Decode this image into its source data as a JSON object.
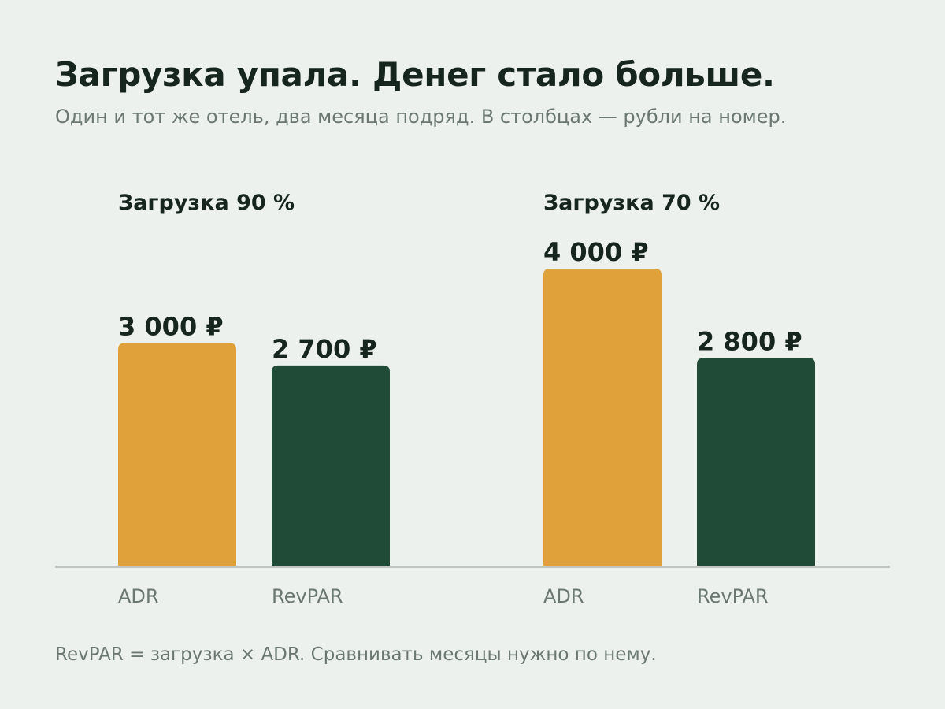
{
  "header": {
    "title": "Загрузка упала. Денег стало больше.",
    "subtitle": "Один и тот же отель, два месяца подряд. В столбцах — рубли на номер."
  },
  "footer": {
    "note": "RevPAR = загрузка × ADR. Сравнивать месяцы нужно по нему."
  },
  "colors": {
    "adr": "#E0A03A",
    "revpar": "#1F4B37",
    "baseline": "#BFC6C2",
    "background": "#EDF1EE"
  },
  "chart_data": {
    "type": "bar",
    "title": "Загрузка упала. Денег стало больше.",
    "subtitle": "Один и тот же отель, два месяца подряд. В столбцах — рубли на номер.",
    "xlabel": "",
    "ylabel": "",
    "unit": "₽",
    "ylim": [
      0,
      4400
    ],
    "grid": false,
    "legend": "none",
    "groups": [
      {
        "label": "Загрузка 90 %",
        "bars": [
          {
            "category": "ADR",
            "value": 3000,
            "value_label": "3 000 ₽",
            "color": "#E0A03A"
          },
          {
            "category": "RevPAR",
            "value": 2700,
            "value_label": "2 700 ₽",
            "color": "#1F4B37"
          }
        ]
      },
      {
        "label": "Загрузка 70 %",
        "bars": [
          {
            "category": "ADR",
            "value": 4000,
            "value_label": "4 000 ₽",
            "color": "#E0A03A"
          },
          {
            "category": "RevPAR",
            "value": 2800,
            "value_label": "2 800 ₽",
            "color": "#1F4B37"
          }
        ]
      }
    ]
  }
}
